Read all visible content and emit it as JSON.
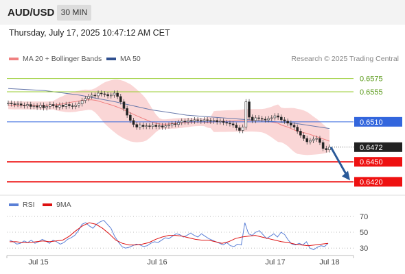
{
  "header": {
    "symbol": "AUD/USD",
    "timeframe": "30 MIN",
    "timestamp": "Thursday, July 17, 2025 10:47:12 AM CET"
  },
  "legend_price": [
    {
      "label": "MA 20 + Bollinger Bands",
      "color": "#f08080"
    },
    {
      "label": "MA 50",
      "color": "#2f4f8f"
    }
  ],
  "credit": "Research © 2025 Trading Central",
  "legend_rsi": [
    {
      "label": "RSI",
      "color": "#5a7fd6"
    },
    {
      "label": "9MA",
      "color": "#dd1111"
    }
  ],
  "colors": {
    "support": "#ee1111",
    "pivot": "#3366dd",
    "resistance": "#9acd32",
    "last_price": "#222222",
    "arrow": "#2a5a99",
    "bollinger": "#f5b4b4",
    "ma50": "#6677aa",
    "rsi": "#5a7fd6",
    "rsi_ma": "#dd1111"
  },
  "chart_data": [
    {
      "type": "line",
      "title": "",
      "ylim": [
        0.6405,
        0.659
      ],
      "x_ticks": [
        "Jul 15",
        "Jul 16",
        "Jul 17",
        "Jul 18"
      ],
      "levels": [
        {
          "label": "0.6575",
          "value": 0.6575,
          "kind": "resistance"
        },
        {
          "label": "0.6555",
          "value": 0.6555,
          "kind": "resistance"
        },
        {
          "label": "0.6510",
          "value": 0.651,
          "kind": "pivot"
        },
        {
          "label": "0.6472",
          "value": 0.6472,
          "kind": "last"
        },
        {
          "label": "0.6450",
          "value": 0.645,
          "kind": "support"
        },
        {
          "label": "0.6420",
          "value": 0.642,
          "kind": "support"
        }
      ],
      "forecast_arrow": {
        "from": 0.6472,
        "to": 0.642
      },
      "series": [
        {
          "name": "AUD/USD",
          "values": [
            0.6538,
            0.6537,
            0.6536,
            0.6537,
            0.6535,
            0.6534,
            0.6536,
            0.6533,
            0.6534,
            0.6532,
            0.6535,
            0.6531,
            0.6533,
            0.6536,
            0.6534,
            0.6532,
            0.6535,
            0.6533,
            0.6536,
            0.6534,
            0.6533,
            0.6535,
            0.6537,
            0.6542,
            0.6545,
            0.6548,
            0.655,
            0.6549,
            0.6553,
            0.6552,
            0.6551,
            0.6549,
            0.655,
            0.6553,
            0.6548,
            0.654,
            0.653,
            0.652,
            0.6512,
            0.6506,
            0.6502,
            0.6505,
            0.6503,
            0.6504,
            0.6503,
            0.6505,
            0.6503,
            0.6504,
            0.6502,
            0.6504,
            0.6505,
            0.6507,
            0.6506,
            0.6509,
            0.6511,
            0.651,
            0.6512,
            0.6511,
            0.6513,
            0.6512,
            0.6511,
            0.6513,
            0.6512,
            0.6511,
            0.6512,
            0.651,
            0.6511,
            0.6509,
            0.6508,
            0.6507,
            0.6505,
            0.6501,
            0.6497,
            0.6502,
            0.654,
            0.6517,
            0.6512,
            0.6516,
            0.6515,
            0.6514,
            0.6513,
            0.6515,
            0.6516,
            0.6519,
            0.6517,
            0.6513,
            0.6511,
            0.6508,
            0.6505,
            0.6502,
            0.6496,
            0.649,
            0.6485,
            0.648,
            0.6482,
            0.6484,
            0.6485,
            0.6479,
            0.647,
            0.6468,
            0.6472
          ]
        },
        {
          "name": "MA 50",
          "values": [
            0.656,
            0.6557,
            0.655,
            0.654,
            0.6528,
            0.652,
            0.6516,
            0.6512,
            0.6508,
            0.65
          ]
        }
      ]
    },
    {
      "type": "line",
      "title": "",
      "ylim": [
        25,
        75
      ],
      "y_ticks": [
        70,
        50,
        30
      ],
      "x_ticks": [
        "Jul 15",
        "Jul 16",
        "Jul 17",
        "Jul 18"
      ],
      "series": [
        {
          "name": "RSI",
          "values": [
            40,
            38,
            35,
            36,
            39,
            37,
            40,
            36,
            38,
            41,
            39,
            36,
            40,
            38,
            35,
            37,
            41,
            43,
            46,
            52,
            60,
            62,
            58,
            55,
            60,
            63,
            65,
            60,
            55,
            45,
            38,
            32,
            30,
            31,
            33,
            35,
            34,
            32,
            33,
            36,
            38,
            37,
            40,
            43,
            42,
            45,
            48,
            47,
            44,
            46,
            49,
            46,
            44,
            48,
            45,
            42,
            40,
            38,
            36,
            34,
            37,
            33,
            32,
            35,
            34,
            62,
            48,
            46,
            50,
            52,
            47,
            42,
            45,
            48,
            44,
            50,
            47,
            40,
            35,
            34,
            36,
            34,
            38,
            30,
            28,
            31,
            33,
            32,
            36
          ]
        },
        {
          "name": "9MA",
          "values": [
            38,
            38,
            37,
            37,
            38,
            39,
            38,
            39,
            40,
            45,
            52,
            58,
            62,
            60,
            55,
            48,
            40,
            36,
            34,
            34,
            35,
            37,
            41,
            44,
            46,
            46,
            45,
            43,
            41,
            40,
            40,
            38,
            36,
            38,
            42,
            44,
            45,
            46,
            44,
            42,
            40,
            38,
            37,
            35,
            34,
            33,
            34,
            35,
            36
          ]
        }
      ]
    }
  ]
}
